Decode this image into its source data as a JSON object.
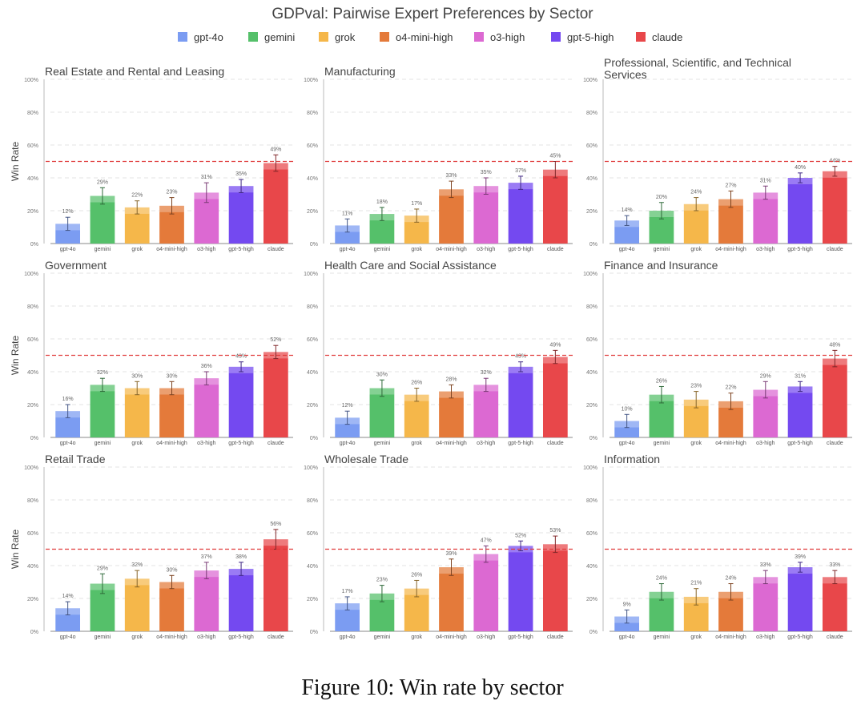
{
  "caption": "Figure 10: Win rate by sector",
  "chart_data": {
    "type": "bar",
    "title": "GDPval: Pairwise Expert Preferences by Sector",
    "ylabel": "Win Rate",
    "ylim": [
      0,
      100
    ],
    "yticks": [
      "0%",
      "20%",
      "40%",
      "60%",
      "80%",
      "100%"
    ],
    "reference_line": 50,
    "models": [
      "gpt-4o",
      "gemini",
      "grok",
      "o4-mini-high",
      "o3-high",
      "gpt-5-high",
      "claude"
    ],
    "colors": [
      "#7B9CF2",
      "#55C06A",
      "#F5B74A",
      "#E47A3A",
      "#DC69D2",
      "#7449F0",
      "#E8474A"
    ],
    "panels": [
      {
        "title": "Real Estate and Rental and Leasing",
        "values": [
          12,
          29,
          22,
          23,
          31,
          35,
          49
        ],
        "labels": [
          "12%",
          "29%",
          "22%",
          "23%",
          "31%",
          "35%",
          "49%"
        ],
        "errors": [
          4,
          5,
          4,
          5,
          6,
          4,
          5
        ]
      },
      {
        "title": "Manufacturing",
        "values": [
          11,
          18,
          17,
          33,
          35,
          37,
          45
        ],
        "labels": [
          "11%",
          "18%",
          "17%",
          "33%",
          "35%",
          "37%",
          "45%"
        ],
        "errors": [
          4,
          4,
          4,
          5,
          5,
          4,
          5
        ]
      },
      {
        "title": "Professional, Scientific, and Technical Services",
        "values": [
          14,
          20,
          24,
          27,
          31,
          40,
          44
        ],
        "labels": [
          "14%",
          "20%",
          "24%",
          "27%",
          "31%",
          "40%",
          "44%"
        ],
        "errors": [
          3,
          5,
          4,
          5,
          4,
          3,
          3
        ]
      },
      {
        "title": "Government",
        "values": [
          16,
          32,
          30,
          30,
          36,
          43,
          52
        ],
        "labels": [
          "16%",
          "32%",
          "30%",
          "30%",
          "36%",
          "43%",
          "52%"
        ],
        "errors": [
          4,
          4,
          4,
          4,
          4,
          3,
          4
        ]
      },
      {
        "title": "Health Care and Social Assistance",
        "values": [
          12,
          30,
          26,
          28,
          32,
          43,
          49
        ],
        "labels": [
          "12%",
          "30%",
          "26%",
          "28%",
          "32%",
          "43%",
          "49%"
        ],
        "errors": [
          4,
          5,
          4,
          4,
          4,
          3,
          4
        ]
      },
      {
        "title": "Finance and Insurance",
        "values": [
          10,
          26,
          23,
          22,
          29,
          31,
          48
        ],
        "labels": [
          "10%",
          "26%",
          "23%",
          "22%",
          "29%",
          "31%",
          "48%"
        ],
        "errors": [
          4,
          5,
          5,
          5,
          5,
          3,
          5
        ]
      },
      {
        "title": "Retail Trade",
        "values": [
          14,
          29,
          32,
          30,
          37,
          38,
          56
        ],
        "labels": [
          "14%",
          "29%",
          "32%",
          "30%",
          "37%",
          "38%",
          "56%"
        ],
        "errors": [
          4,
          6,
          5,
          4,
          5,
          4,
          6
        ]
      },
      {
        "title": "Wholesale Trade",
        "values": [
          17,
          23,
          26,
          39,
          47,
          52,
          53
        ],
        "labels": [
          "17%",
          "23%",
          "26%",
          "39%",
          "47%",
          "52%",
          "53%"
        ],
        "errors": [
          4,
          5,
          5,
          5,
          5,
          3,
          5
        ]
      },
      {
        "title": "Information",
        "values": [
          9,
          24,
          21,
          24,
          33,
          39,
          33
        ],
        "labels": [
          "9%",
          "24%",
          "21%",
          "24%",
          "33%",
          "39%",
          "33%"
        ],
        "errors": [
          4,
          5,
          5,
          5,
          4,
          3,
          4
        ]
      }
    ]
  }
}
